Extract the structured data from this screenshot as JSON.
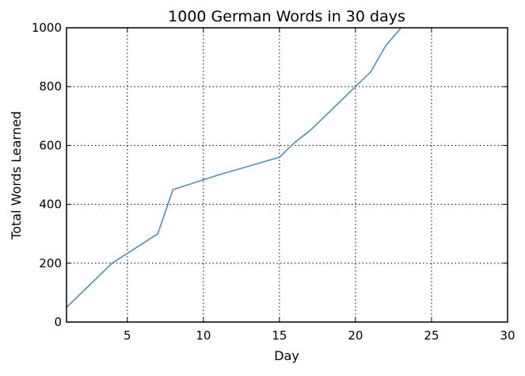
{
  "chart_data": {
    "type": "line",
    "title": "1000 German Words in 30 days",
    "xlabel": "Day",
    "ylabel": "Total Words Learned",
    "xlim": [
      1,
      30
    ],
    "ylim": [
      0,
      1000
    ],
    "xticks": [
      5,
      10,
      15,
      20,
      25,
      30
    ],
    "yticks": [
      0,
      200,
      400,
      600,
      800,
      1000
    ],
    "grid": true,
    "line_color": "#4a8fc2",
    "series": [
      {
        "x": [
          1,
          4,
          7,
          8,
          11,
          15,
          16,
          17,
          20,
          21,
          22,
          23
        ],
        "y": [
          50,
          200,
          300,
          450,
          500,
          560,
          610,
          650,
          800,
          850,
          940,
          1000
        ]
      }
    ]
  }
}
